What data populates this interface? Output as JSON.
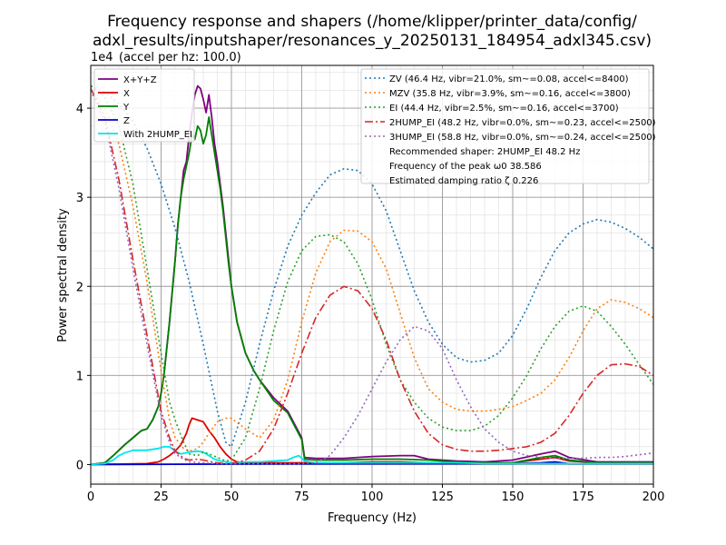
{
  "chart_data": {
    "type": "line",
    "title_lines": [
      "Frequency response and shapers (/home/klipper/printer_data/config/",
      "adxl_results/inputshaper/resonances_y_20250131_184954_adxl345.csv)"
    ],
    "xlabel": "Frequency (Hz)",
    "ylabel": "Power spectral density",
    "y_offset_label": "1e4",
    "y_note": "(accel per hz: 100.0)",
    "xlim": [
      0,
      200
    ],
    "ylim": [
      -0.22,
      4.48
    ],
    "x_ticks": [
      0,
      25,
      50,
      75,
      100,
      125,
      150,
      175,
      200
    ],
    "x_tick_labels": [
      "0",
      "25",
      "50",
      "75",
      "100",
      "125",
      "150",
      "175",
      "200"
    ],
    "y_ticks": [
      0,
      1,
      2,
      3,
      4
    ],
    "y_tick_labels": [
      "0",
      "1",
      "2",
      "3",
      "4"
    ],
    "x_minor_step": 5,
    "y_minor_step": 0.2,
    "grid": true,
    "legend_left_placement": "upper-left",
    "legend_right_placement": "upper-right",
    "series": [
      {
        "name": "X+Y+Z",
        "color": "#800080",
        "style": "solid",
        "x": [
          0,
          5,
          8,
          10,
          12,
          15,
          18,
          20,
          22,
          24,
          25,
          26,
          28,
          30,
          31,
          32,
          33,
          34,
          35,
          36,
          37,
          38,
          39,
          40,
          41,
          42,
          43,
          44,
          45,
          46,
          47,
          48,
          49,
          50,
          52,
          55,
          58,
          60,
          65,
          70,
          75,
          76,
          80,
          90,
          100,
          110,
          115,
          120,
          130,
          140,
          150,
          160,
          165,
          170,
          180,
          190,
          200
        ],
        "y": [
          0,
          0.02,
          0.1,
          0.16,
          0.22,
          0.3,
          0.38,
          0.4,
          0.5,
          0.65,
          0.8,
          1.0,
          1.6,
          2.3,
          2.7,
          3.0,
          3.3,
          3.4,
          3.7,
          3.95,
          4.15,
          4.25,
          4.22,
          4.1,
          3.95,
          4.15,
          3.9,
          3.6,
          3.4,
          3.15,
          2.9,
          2.6,
          2.3,
          2.0,
          1.6,
          1.25,
          1.05,
          0.95,
          0.75,
          0.6,
          0.3,
          0.08,
          0.07,
          0.07,
          0.09,
          0.1,
          0.1,
          0.06,
          0.04,
          0.03,
          0.05,
          0.12,
          0.15,
          0.08,
          0.03,
          0.03,
          0.03
        ]
      },
      {
        "name": "X",
        "color": "#dd0000",
        "style": "solid",
        "x": [
          0,
          20,
          24,
          26,
          28,
          30,
          32,
          34,
          35,
          36,
          38,
          40,
          42,
          44,
          46,
          48,
          50,
          52,
          55,
          60,
          65,
          70,
          75,
          80,
          90,
          100,
          110,
          120,
          130,
          140,
          150,
          160,
          165,
          170,
          180,
          200
        ],
        "y": [
          0,
          0.01,
          0.03,
          0.06,
          0.1,
          0.15,
          0.22,
          0.35,
          0.45,
          0.52,
          0.5,
          0.48,
          0.38,
          0.3,
          0.2,
          0.12,
          0.06,
          0.03,
          0.02,
          0.02,
          0.02,
          0.02,
          0.02,
          0.02,
          0.02,
          0.03,
          0.03,
          0.02,
          0.02,
          0.02,
          0.02,
          0.06,
          0.08,
          0.04,
          0.02,
          0.02
        ]
      },
      {
        "name": "Y",
        "color": "#008000",
        "style": "solid",
        "x": [
          0,
          5,
          8,
          10,
          12,
          15,
          18,
          20,
          22,
          24,
          25,
          26,
          28,
          30,
          31,
          32,
          33,
          34,
          35,
          36,
          37,
          38,
          39,
          40,
          41,
          42,
          43,
          44,
          45,
          46,
          47,
          48,
          49,
          50,
          52,
          55,
          58,
          60,
          65,
          70,
          75,
          76,
          80,
          90,
          100,
          110,
          120,
          130,
          140,
          150,
          160,
          165,
          170,
          180,
          200
        ],
        "y": [
          0,
          0.02,
          0.1,
          0.16,
          0.22,
          0.3,
          0.38,
          0.4,
          0.5,
          0.65,
          0.8,
          1.0,
          1.6,
          2.3,
          2.7,
          3.0,
          3.2,
          3.35,
          3.5,
          3.7,
          3.65,
          3.8,
          3.75,
          3.6,
          3.7,
          3.9,
          3.7,
          3.5,
          3.3,
          3.1,
          2.85,
          2.55,
          2.25,
          2.0,
          1.6,
          1.25,
          1.05,
          0.95,
          0.72,
          0.58,
          0.28,
          0.06,
          0.05,
          0.05,
          0.06,
          0.06,
          0.05,
          0.03,
          0.02,
          0.02,
          0.08,
          0.1,
          0.05,
          0.02,
          0.02
        ]
      },
      {
        "name": "Z",
        "color": "#0000cc",
        "style": "solid",
        "x": [
          0,
          50,
          100,
          150,
          160,
          165,
          170,
          200
        ],
        "y": [
          0,
          0.005,
          0.008,
          0.01,
          0.02,
          0.03,
          0.01,
          0.01
        ]
      },
      {
        "name": "With 2HUMP_EI",
        "color": "#00e5ee",
        "style": "solid",
        "x": [
          0,
          5,
          8,
          10,
          12,
          15,
          18,
          20,
          22,
          24,
          26,
          28,
          30,
          32,
          35,
          38,
          40,
          42,
          44,
          46,
          48,
          50,
          55,
          60,
          65,
          70,
          72,
          74,
          76,
          80,
          90,
          100,
          110,
          120,
          130,
          140,
          150,
          160,
          165,
          170,
          180,
          200
        ],
        "y": [
          0,
          0.01,
          0.05,
          0.1,
          0.13,
          0.16,
          0.16,
          0.16,
          0.17,
          0.18,
          0.2,
          0.2,
          0.15,
          0.12,
          0.14,
          0.15,
          0.14,
          0.1,
          0.06,
          0.04,
          0.03,
          0.02,
          0.03,
          0.03,
          0.04,
          0.05,
          0.08,
          0.1,
          0.04,
          0.02,
          0.02,
          0.02,
          0.02,
          0.02,
          0.02,
          0.01,
          0.01,
          0.01,
          0.01,
          0.01,
          0.01,
          0.01
        ]
      },
      {
        "name": "ZV (46.4 Hz, vibr=21.0%, sm~=0.08, accel<=8400)",
        "color": "#1f77b4",
        "style": "dotted",
        "x": [
          0,
          5,
          10,
          15,
          20,
          25,
          30,
          35,
          40,
          45,
          48,
          50,
          55,
          60,
          65,
          70,
          75,
          80,
          85,
          90,
          95,
          100,
          105,
          110,
          115,
          120,
          125,
          130,
          135,
          140,
          145,
          150,
          155,
          160,
          165,
          170,
          175,
          180,
          185,
          190,
          195,
          200
        ],
        "y": [
          4.25,
          4.18,
          4.05,
          3.85,
          3.55,
          3.15,
          2.65,
          2.05,
          1.35,
          0.6,
          0.25,
          0.2,
          0.7,
          1.35,
          1.95,
          2.45,
          2.8,
          3.05,
          3.25,
          3.32,
          3.3,
          3.15,
          2.85,
          2.4,
          1.95,
          1.6,
          1.35,
          1.2,
          1.15,
          1.17,
          1.25,
          1.45,
          1.75,
          2.1,
          2.4,
          2.6,
          2.7,
          2.75,
          2.72,
          2.65,
          2.55,
          2.42
        ]
      },
      {
        "name": "MZV (35.8 Hz, vibr=3.9%, sm~=0.16, accel<=3800)",
        "color": "#ff7f0e",
        "style": "dotted",
        "x": [
          0,
          5,
          10,
          15,
          20,
          25,
          28,
          30,
          33,
          35,
          38,
          40,
          42,
          45,
          48,
          50,
          55,
          60,
          65,
          70,
          75,
          80,
          85,
          90,
          95,
          100,
          105,
          110,
          115,
          120,
          125,
          130,
          135,
          140,
          145,
          150,
          155,
          160,
          165,
          170,
          175,
          180,
          185,
          190,
          195,
          200
        ],
        "y": [
          4.2,
          4.0,
          3.6,
          2.9,
          2.05,
          1.05,
          0.5,
          0.3,
          0.18,
          0.15,
          0.18,
          0.25,
          0.35,
          0.48,
          0.52,
          0.52,
          0.4,
          0.3,
          0.5,
          0.95,
          1.6,
          2.15,
          2.5,
          2.63,
          2.62,
          2.5,
          2.2,
          1.7,
          1.2,
          0.85,
          0.7,
          0.62,
          0.6,
          0.6,
          0.62,
          0.65,
          0.72,
          0.8,
          0.95,
          1.2,
          1.5,
          1.75,
          1.85,
          1.82,
          1.75,
          1.65
        ]
      },
      {
        "name": "EI (44.4 Hz, vibr=2.5%, sm~=0.16, accel<=3700)",
        "color": "#2ca02c",
        "style": "dotted",
        "x": [
          0,
          5,
          10,
          15,
          20,
          25,
          28,
          30,
          33,
          35,
          38,
          40,
          42,
          45,
          48,
          50,
          55,
          60,
          65,
          70,
          75,
          80,
          85,
          90,
          95,
          100,
          105,
          110,
          115,
          120,
          125,
          130,
          135,
          140,
          145,
          150,
          155,
          160,
          165,
          170,
          175,
          180,
          185,
          190,
          195,
          200
        ],
        "y": [
          4.25,
          4.12,
          3.8,
          3.15,
          2.2,
          1.25,
          0.7,
          0.5,
          0.25,
          0.12,
          0.1,
          0.14,
          0.12,
          0.08,
          0.04,
          0.05,
          0.3,
          0.85,
          1.5,
          2.05,
          2.4,
          2.56,
          2.58,
          2.5,
          2.25,
          1.85,
          1.35,
          0.95,
          0.7,
          0.52,
          0.42,
          0.38,
          0.38,
          0.43,
          0.55,
          0.75,
          1.0,
          1.3,
          1.55,
          1.72,
          1.78,
          1.72,
          1.55,
          1.35,
          1.12,
          0.9
        ]
      },
      {
        "name": "2HUMP_EI (48.2 Hz, vibr=0.0%, sm~=0.23, accel<=2500)",
        "color": "#d62728",
        "style": "dashdot",
        "x": [
          0,
          5,
          10,
          15,
          20,
          25,
          28,
          30,
          33,
          35,
          38,
          40,
          43,
          45,
          48,
          50,
          55,
          60,
          65,
          70,
          75,
          80,
          85,
          90,
          95,
          100,
          105,
          110,
          115,
          120,
          125,
          130,
          135,
          140,
          145,
          150,
          155,
          160,
          165,
          170,
          175,
          180,
          185,
          190,
          195,
          200
        ],
        "y": [
          4.22,
          3.9,
          3.2,
          2.3,
          1.45,
          0.6,
          0.3,
          0.15,
          0.07,
          0.05,
          0.06,
          0.05,
          0.03,
          0.02,
          0.01,
          0.01,
          0.05,
          0.15,
          0.4,
          0.8,
          1.25,
          1.65,
          1.9,
          2.0,
          1.95,
          1.75,
          1.4,
          0.95,
          0.6,
          0.35,
          0.22,
          0.17,
          0.15,
          0.15,
          0.16,
          0.18,
          0.2,
          0.25,
          0.35,
          0.55,
          0.8,
          1.0,
          1.12,
          1.13,
          1.1,
          1.0
        ]
      },
      {
        "name": "3HUMP_EI (58.8 Hz, vibr=0.0%, sm~=0.24, accel<=2500)",
        "color": "#9467bd",
        "style": "dotted",
        "x": [
          0,
          5,
          10,
          15,
          20,
          25,
          28,
          30,
          33,
          35,
          40,
          45,
          50,
          55,
          60,
          65,
          70,
          75,
          80,
          85,
          90,
          95,
          100,
          105,
          110,
          115,
          120,
          125,
          130,
          135,
          140,
          145,
          150,
          155,
          160,
          165,
          170,
          175,
          180,
          185,
          190,
          195,
          200
        ],
        "y": [
          4.2,
          3.85,
          3.1,
          2.2,
          1.35,
          0.55,
          0.25,
          0.12,
          0.06,
          0.03,
          0.02,
          0.01,
          0.01,
          0.01,
          0.01,
          0.01,
          0.01,
          0.01,
          0.02,
          0.1,
          0.3,
          0.55,
          0.85,
          1.15,
          1.4,
          1.55,
          1.5,
          1.3,
          0.95,
          0.65,
          0.4,
          0.25,
          0.15,
          0.1,
          0.08,
          0.07,
          0.07,
          0.07,
          0.08,
          0.08,
          0.09,
          0.11,
          0.13
        ]
      }
    ],
    "legend_left": [
      "X+Y+Z",
      "X",
      "Y",
      "Z",
      "With 2HUMP_EI"
    ],
    "legend_right_lines": [
      "ZV (46.4 Hz, vibr=21.0%, sm~=0.08, accel<=8400)",
      "MZV (35.8 Hz, vibr=3.9%, sm~=0.16, accel<=3800)",
      "EI (44.4 Hz, vibr=2.5%, sm~=0.16, accel<=3700)",
      "2HUMP_EI (48.2 Hz, vibr=0.0%, sm~=0.23, accel<=2500)",
      "3HUMP_EI (58.8 Hz, vibr=0.0%, sm~=0.24, accel<=2500)"
    ],
    "legend_right_notes": [
      "Recommended shaper: 2HUMP_EI 48.2 Hz",
      "Frequency of the peak ω0 38.586",
      "Estimated damping ratio ζ 0.226"
    ]
  }
}
